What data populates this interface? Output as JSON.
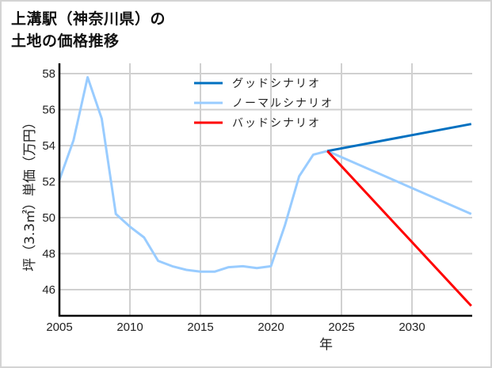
{
  "title_line1": "上溝駅（神奈川県）の",
  "title_line2": "土地の価格推移",
  "chart_data": {
    "type": "line",
    "title": "上溝駅（神奈川県）の土地の価格推移",
    "xlabel": "年",
    "ylabel": "坪（3.3㎡）単価（万円）",
    "xlim": [
      2005,
      2034.2
    ],
    "ylim": [
      44.5,
      58.4
    ],
    "xticks": [
      2005,
      2010,
      2015,
      2020,
      2025,
      2030
    ],
    "yticks": [
      46,
      48,
      50,
      52,
      54,
      56,
      58
    ],
    "grid": true,
    "legend_position": "upper center",
    "series": [
      {
        "name": "ノーマルシナリオ",
        "color": "#99ccff",
        "x": [
          2005,
          2006,
          2007,
          2008,
          2009,
          2010,
          2011,
          2012,
          2013,
          2014,
          2015,
          2016,
          2017,
          2018,
          2019,
          2020,
          2021,
          2022,
          2023,
          2024,
          2034.2
        ],
        "values": [
          52.1,
          54.3,
          57.8,
          55.5,
          50.2,
          49.5,
          48.9,
          47.6,
          47.3,
          47.1,
          47.0,
          47.0,
          47.25,
          47.3,
          47.2,
          47.3,
          49.6,
          52.3,
          53.5,
          53.7,
          50.2
        ]
      },
      {
        "name": "グッドシナリオ",
        "color": "#0070c0",
        "x": [
          2024,
          2034.2
        ],
        "values": [
          53.7,
          55.2
        ]
      },
      {
        "name": "バッドシナリオ",
        "color": "#ff0000",
        "x": [
          2024,
          2034.2
        ],
        "values": [
          53.7,
          45.1
        ]
      }
    ]
  },
  "legend": [
    {
      "label": "グッドシナリオ",
      "color": "#0070c0"
    },
    {
      "label": "ノーマルシナリオ",
      "color": "#99ccff"
    },
    {
      "label": "バッドシナリオ",
      "color": "#ff0000"
    }
  ]
}
